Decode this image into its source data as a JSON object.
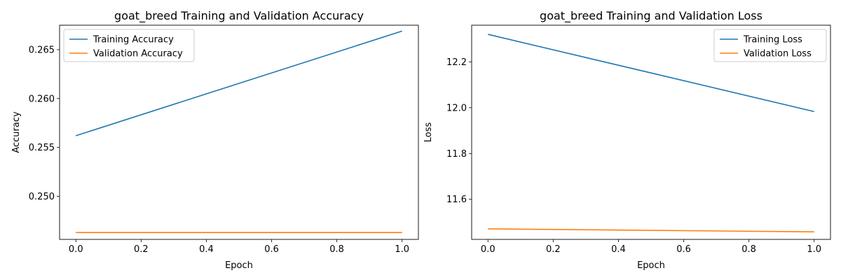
{
  "chart_data": [
    {
      "type": "line",
      "title": "goat_breed Training and Validation Accuracy",
      "xlabel": "Epoch",
      "ylabel": "Accuracy",
      "xlim": [
        -0.05,
        1.05
      ],
      "ylim": [
        0.2456,
        0.2675
      ],
      "xticks": [
        0.0,
        0.2,
        0.4,
        0.6,
        0.8,
        1.0
      ],
      "xtick_labels": [
        "0.0",
        "0.2",
        "0.4",
        "0.6",
        "0.8",
        "1.0"
      ],
      "yticks": [
        0.25,
        0.255,
        0.26,
        0.265
      ],
      "ytick_labels": [
        "0.250",
        "0.255",
        "0.260",
        "0.265"
      ],
      "legend_position": "top-left",
      "grid": false,
      "series": [
        {
          "name": "Training Accuracy",
          "color": "#1f77b4",
          "x": [
            0,
            1
          ],
          "y": [
            0.2562,
            0.2669
          ]
        },
        {
          "name": "Validation Accuracy",
          "color": "#ff7f0e",
          "x": [
            0,
            1
          ],
          "y": [
            0.2463,
            0.2463
          ]
        }
      ]
    },
    {
      "type": "line",
      "title": "goat_breed Training and Validation Loss",
      "xlabel": "Epoch",
      "ylabel": "Loss",
      "xlim": [
        -0.05,
        1.05
      ],
      "ylim": [
        11.425,
        12.36
      ],
      "xticks": [
        0.0,
        0.2,
        0.4,
        0.6,
        0.8,
        1.0
      ],
      "xtick_labels": [
        "0.0",
        "0.2",
        "0.4",
        "0.6",
        "0.8",
        "1.0"
      ],
      "yticks": [
        11.6,
        11.8,
        12.0,
        12.2
      ],
      "ytick_labels": [
        "11.6",
        "11.8",
        "12.0",
        "12.2"
      ],
      "legend_position": "top-right",
      "grid": false,
      "series": [
        {
          "name": "Training Loss",
          "color": "#1f77b4",
          "x": [
            0,
            1
          ],
          "y": [
            12.32,
            11.983
          ]
        },
        {
          "name": "Validation Loss",
          "color": "#ff7f0e",
          "x": [
            0,
            1
          ],
          "y": [
            11.471,
            11.458
          ]
        }
      ]
    }
  ]
}
